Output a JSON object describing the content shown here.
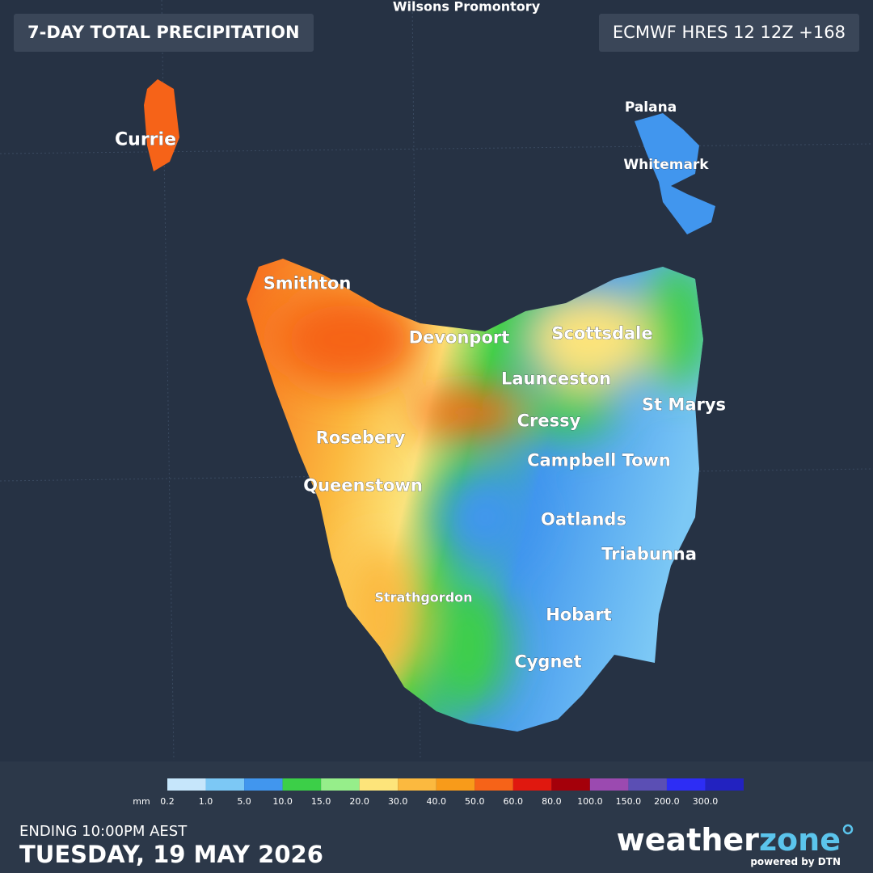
{
  "header": {
    "title": "7-DAY TOTAL PRECIPITATION",
    "model": "ECMWF HRES 12 12Z +168"
  },
  "map": {
    "places": [
      {
        "label": "Wilsons Promontory"
      },
      {
        "label": "Currie"
      },
      {
        "label": "Palana"
      },
      {
        "label": "Whitemark"
      },
      {
        "label": "Smithton"
      },
      {
        "label": "Devonport"
      },
      {
        "label": "Scottsdale"
      },
      {
        "label": "Launceston"
      },
      {
        "label": "St Marys"
      },
      {
        "label": "Cressy"
      },
      {
        "label": "Rosebery"
      },
      {
        "label": "Campbell Town"
      },
      {
        "label": "Queenstown"
      },
      {
        "label": "Oatlands"
      },
      {
        "label": "Triabunna"
      },
      {
        "label": "Strathgordon"
      },
      {
        "label": "Hobart"
      },
      {
        "label": "Cygnet"
      }
    ]
  },
  "legend": {
    "unit": "mm",
    "colors": [
      "#c6e6fb",
      "#7cc8f5",
      "#4196ee",
      "#3ccf48",
      "#96ee8a",
      "#fde47a",
      "#fbb93f",
      "#f89b1a",
      "#f66318",
      "#e0180f",
      "#a4000a",
      "#9b4ab0",
      "#5b4fb4",
      "#2d2df5",
      "#2222c0"
    ],
    "labels": [
      "0.2",
      "1.0",
      "5.0",
      "10.0",
      "15.0",
      "20.0",
      "30.0",
      "40.0",
      "50.0",
      "60.0",
      "80.0",
      "100.0",
      "150.0",
      "200.0",
      "300.0"
    ]
  },
  "footer": {
    "ending": "ENDING 10:00PM AEST",
    "date": "TUESDAY, 19 MAY 2026",
    "brand_a": "weather",
    "brand_b": "zone",
    "powered": "powered by DTN"
  }
}
